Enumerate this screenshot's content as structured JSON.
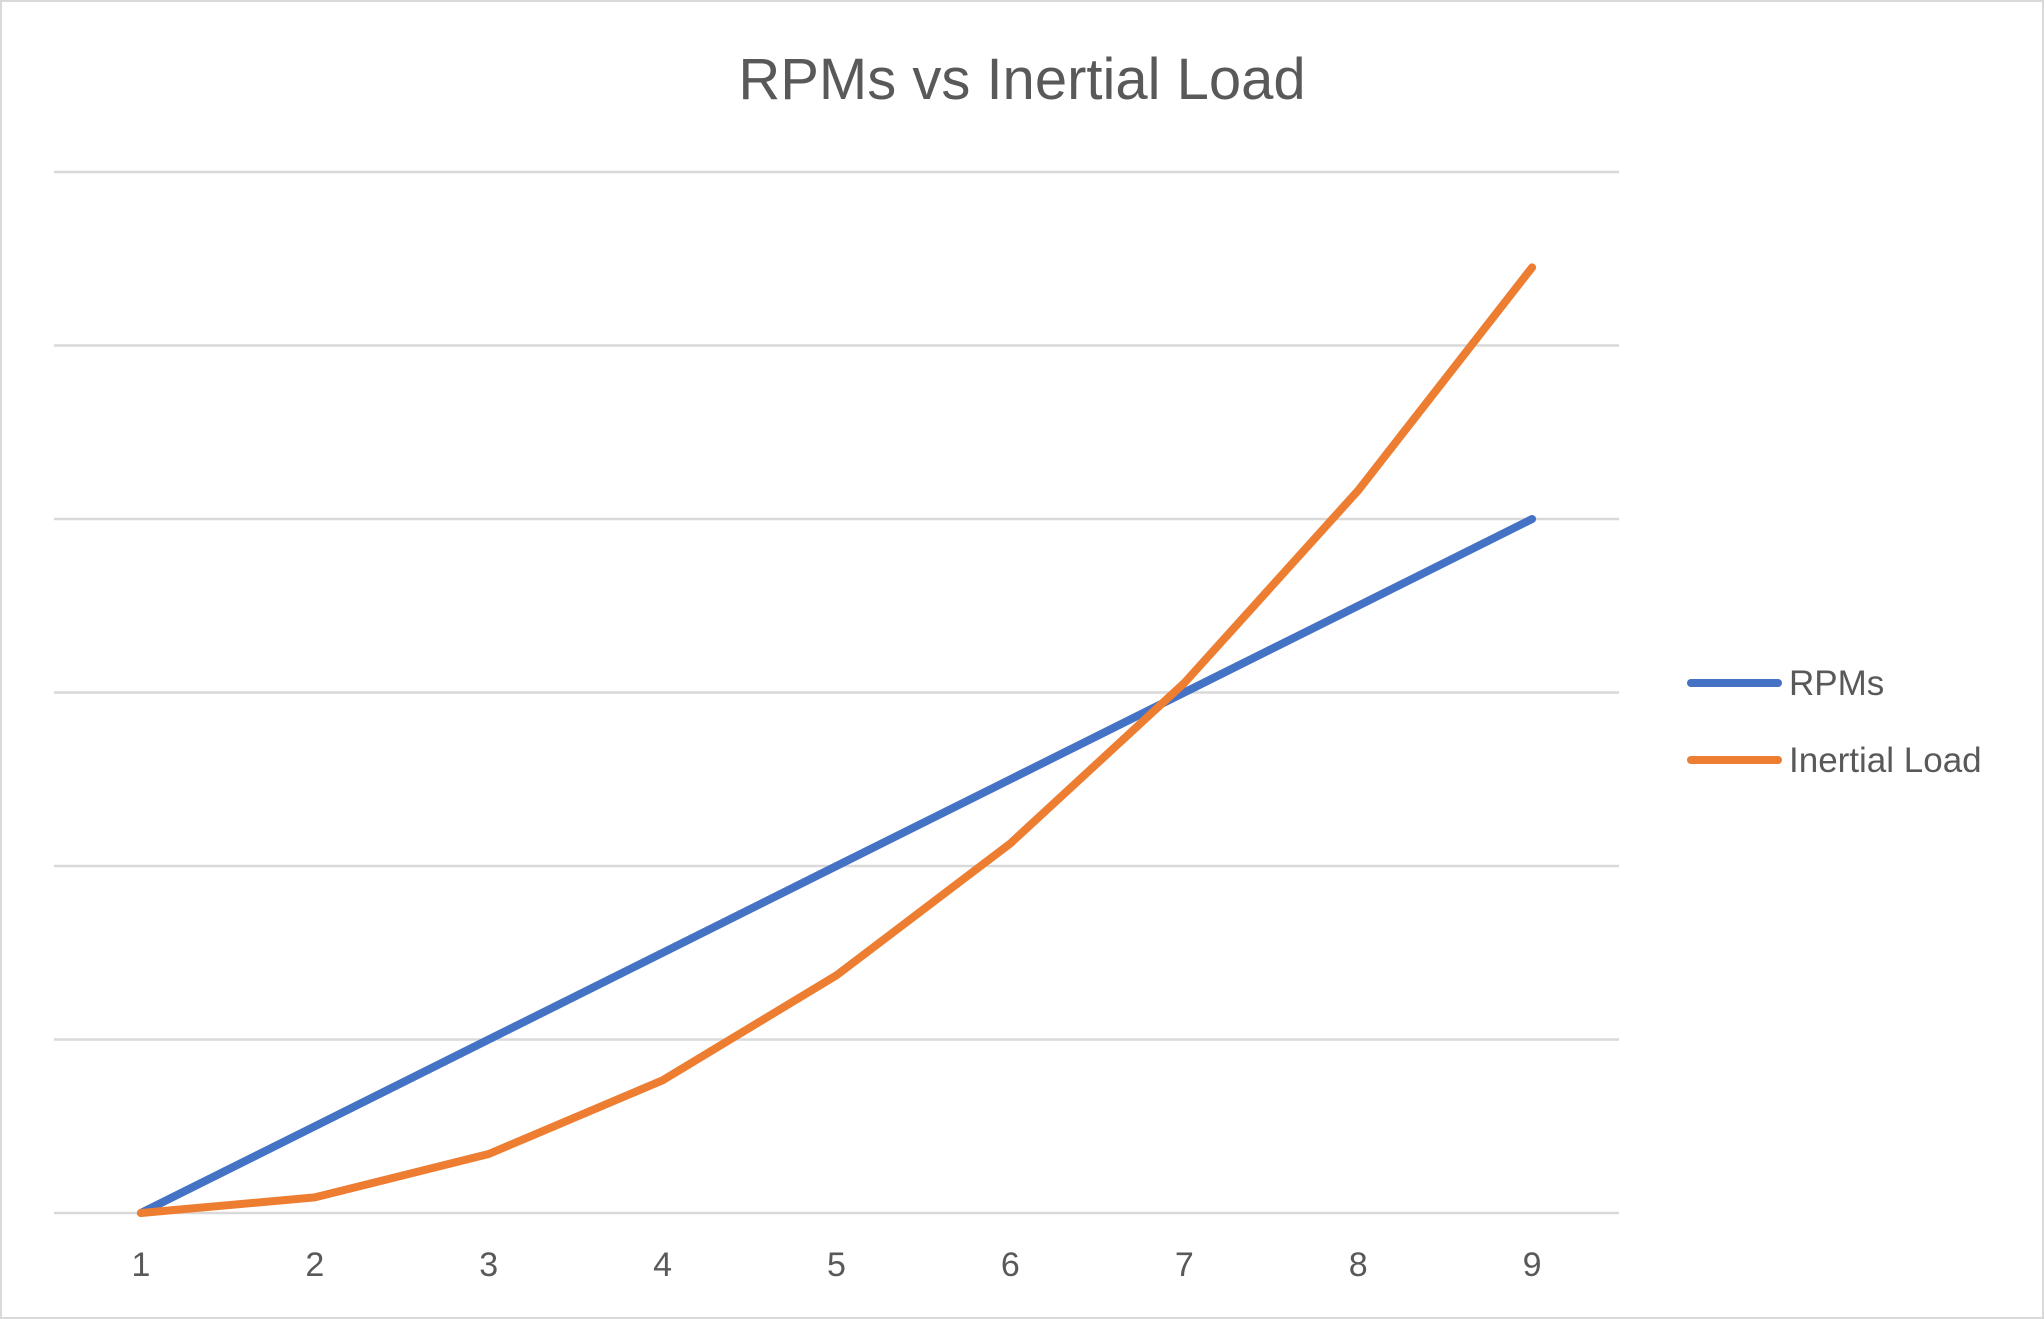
{
  "chart_data": {
    "type": "line",
    "title": "RPMs vs Inertial Load",
    "xlabel": "",
    "ylabel": "",
    "categories": [
      "1",
      "2",
      "3",
      "4",
      "5",
      "6",
      "7",
      "8",
      "9"
    ],
    "series": [
      {
        "name": "RPMs",
        "color": "#4472c4",
        "values": [
          0,
          1,
          2,
          3,
          4,
          5,
          6,
          7,
          8
        ]
      },
      {
        "name": "Inertial Load",
        "color": "#ed7d31",
        "values": [
          0,
          0.18,
          0.68,
          1.53,
          2.74,
          4.26,
          6.11,
          8.33,
          10.9
        ]
      }
    ],
    "ylim": [
      0,
      12
    ],
    "ytick_step": 2,
    "grid": true,
    "legend_position": "right"
  }
}
